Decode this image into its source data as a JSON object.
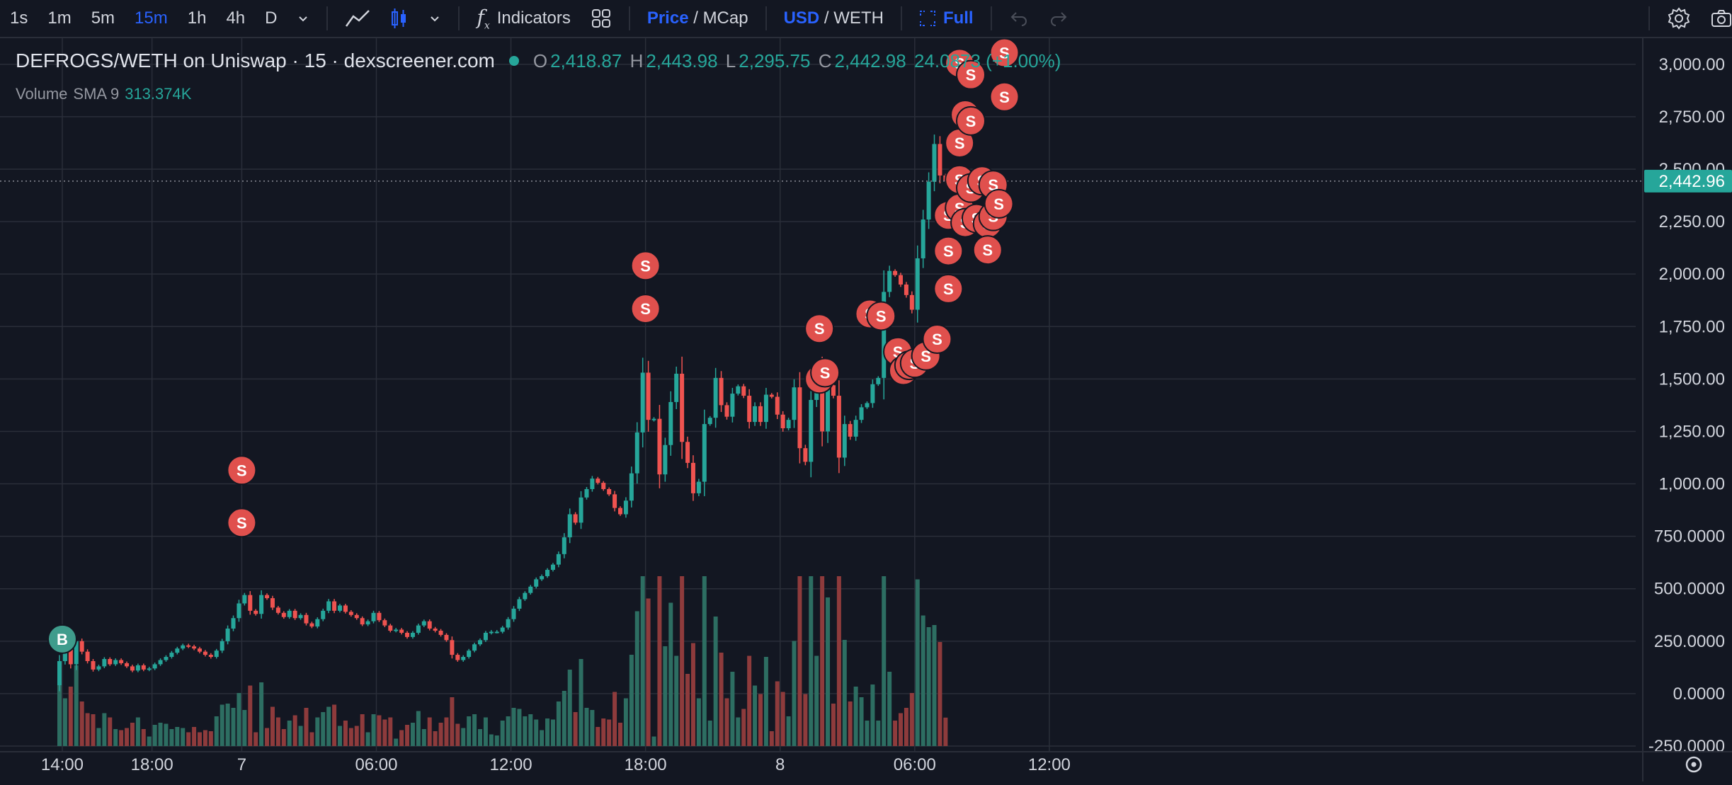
{
  "toolbar": {
    "timeframes": [
      "1s",
      "1m",
      "5m",
      "15m",
      "1h",
      "4h",
      "D"
    ],
    "active_timeframe": "15m",
    "indicators_label": "Indicators",
    "price_label": "Price",
    "mcap_label": "MCap",
    "usd_label": "USD",
    "weth_label": "WETH",
    "full_label": "Full",
    "slash": " / "
  },
  "legend": {
    "title": "DEFROGS/WETH on Uniswap · 15 · dexscreener.com",
    "o_label": "O",
    "o": "2,418.87",
    "h_label": "H",
    "h": "2,443.98",
    "l_label": "L",
    "l": "2,295.75",
    "c_label": "C",
    "c": "2,442.98",
    "change": "24.0873 (+1.00%)",
    "volume_label": "Volume",
    "sma_label": "SMA 9",
    "volume_value": "313.374K"
  },
  "colors": {
    "bg": "#131722",
    "grid": "#2a2e39",
    "up": "#26a69a",
    "down": "#ef5350",
    "up_vol": "#2d6e62",
    "down_vol": "#8e3b3c",
    "label": "#d1d4dc"
  },
  "chart_data": {
    "type": "candlestick",
    "y_ticks": [
      "3,000.00",
      "2,750.00",
      "2,500.00",
      "2,250.00",
      "2,000.00",
      "1,750.00",
      "1,500.00",
      "1,250.00",
      "1,000.00",
      "750.0000",
      "500.0000",
      "250.0000",
      "0.0000",
      "-250.0000"
    ],
    "y_range": [
      -250,
      3050
    ],
    "x_ticks": [
      {
        "label": "14:00",
        "at": 0.5
      },
      {
        "label": "18:00",
        "at": 16.5
      },
      {
        "label": "7",
        "at": 32.5
      },
      {
        "label": "06:00",
        "at": 56.5
      },
      {
        "label": "12:00",
        "at": 80.5
      },
      {
        "label": "18:00",
        "at": 104.5
      },
      {
        "label": "8",
        "at": 128.5
      },
      {
        "label": "06:00",
        "at": 152.5
      },
      {
        "label": "12:00",
        "at": 176.5
      }
    ],
    "last_price_label": "2,442.96",
    "last_price": 2442.96,
    "closes": [
      155,
      220,
      140,
      250,
      200,
      155,
      115,
      130,
      165,
      140,
      160,
      145,
      130,
      110,
      135,
      115,
      120,
      140,
      160,
      175,
      195,
      215,
      230,
      225,
      215,
      200,
      185,
      175,
      205,
      250,
      310,
      360,
      430,
      470,
      395,
      380,
      470,
      455,
      410,
      385,
      365,
      395,
      360,
      375,
      335,
      320,
      355,
      395,
      440,
      395,
      420,
      390,
      375,
      360,
      330,
      345,
      385,
      350,
      325,
      300,
      305,
      290,
      270,
      290,
      325,
      345,
      310,
      300,
      280,
      255,
      185,
      160,
      175,
      205,
      235,
      255,
      290,
      295,
      295,
      315,
      355,
      405,
      450,
      480,
      510,
      545,
      560,
      590,
      615,
      665,
      745,
      855,
      815,
      935,
      975,
      1025,
      1005,
      975,
      950,
      885,
      855,
      920,
      1050,
      1245,
      1530,
      1305,
      1310,
      1045,
      1185,
      1390,
      1525,
      1200,
      1100,
      955,
      1010,
      1285,
      1315,
      1505,
      1375,
      1320,
      1430,
      1465,
      1420,
      1295,
      1370,
      1295,
      1425,
      1415,
      1330,
      1265,
      1305,
      1460,
      1170,
      1105,
      1400,
      1535,
      1250,
      1470,
      1420,
      1125,
      1285,
      1225,
      1305,
      1365,
      1385,
      1475,
      1505,
      1915,
      2015,
      1995,
      1950,
      1900,
      1830,
      2075,
      2260,
      2440,
      2620,
      2470,
      2442
    ],
    "sell_markers": [
      {
        "at": 32.5,
        "price": 1065
      },
      {
        "at": 32.5,
        "price": 815
      },
      {
        "at": 104.5,
        "price": 2040
      },
      {
        "at": 104.5,
        "price": 1835
      },
      {
        "at": 135.5,
        "price": 1740
      },
      {
        "at": 135.5,
        "price": 1500
      },
      {
        "at": 136.5,
        "price": 1530
      },
      {
        "at": 144.5,
        "price": 1810
      },
      {
        "at": 146.5,
        "price": 1800
      },
      {
        "at": 149.5,
        "price": 1630
      },
      {
        "at": 150.5,
        "price": 1540
      },
      {
        "at": 151.5,
        "price": 1565
      },
      {
        "at": 152.5,
        "price": 1575
      },
      {
        "at": 154.5,
        "price": 1610
      },
      {
        "at": 156.5,
        "price": 1690
      },
      {
        "at": 158.5,
        "price": 2280
      },
      {
        "at": 158.5,
        "price": 2110
      },
      {
        "at": 158.5,
        "price": 1930
      },
      {
        "at": 160.5,
        "price": 3005
      },
      {
        "at": 160.5,
        "price": 2625
      },
      {
        "at": 160.5,
        "price": 2450
      },
      {
        "at": 160.5,
        "price": 2315
      },
      {
        "at": 161.5,
        "price": 2760
      },
      {
        "at": 161.5,
        "price": 2245
      },
      {
        "at": 162.5,
        "price": 2950
      },
      {
        "at": 162.5,
        "price": 2730
      },
      {
        "at": 162.5,
        "price": 2410
      },
      {
        "at": 163.5,
        "price": 2265
      },
      {
        "at": 164.5,
        "price": 2445
      },
      {
        "at": 165.5,
        "price": 2240
      },
      {
        "at": 165.5,
        "price": 2115
      },
      {
        "at": 166.5,
        "price": 2425
      },
      {
        "at": 166.5,
        "price": 2275
      },
      {
        "at": 167.5,
        "price": 2335
      },
      {
        "at": 168.5,
        "price": 3055
      },
      {
        "at": 168.5,
        "price": 2845
      }
    ],
    "buy_markers": [
      {
        "at": 0.5,
        "price": 260
      }
    ]
  }
}
